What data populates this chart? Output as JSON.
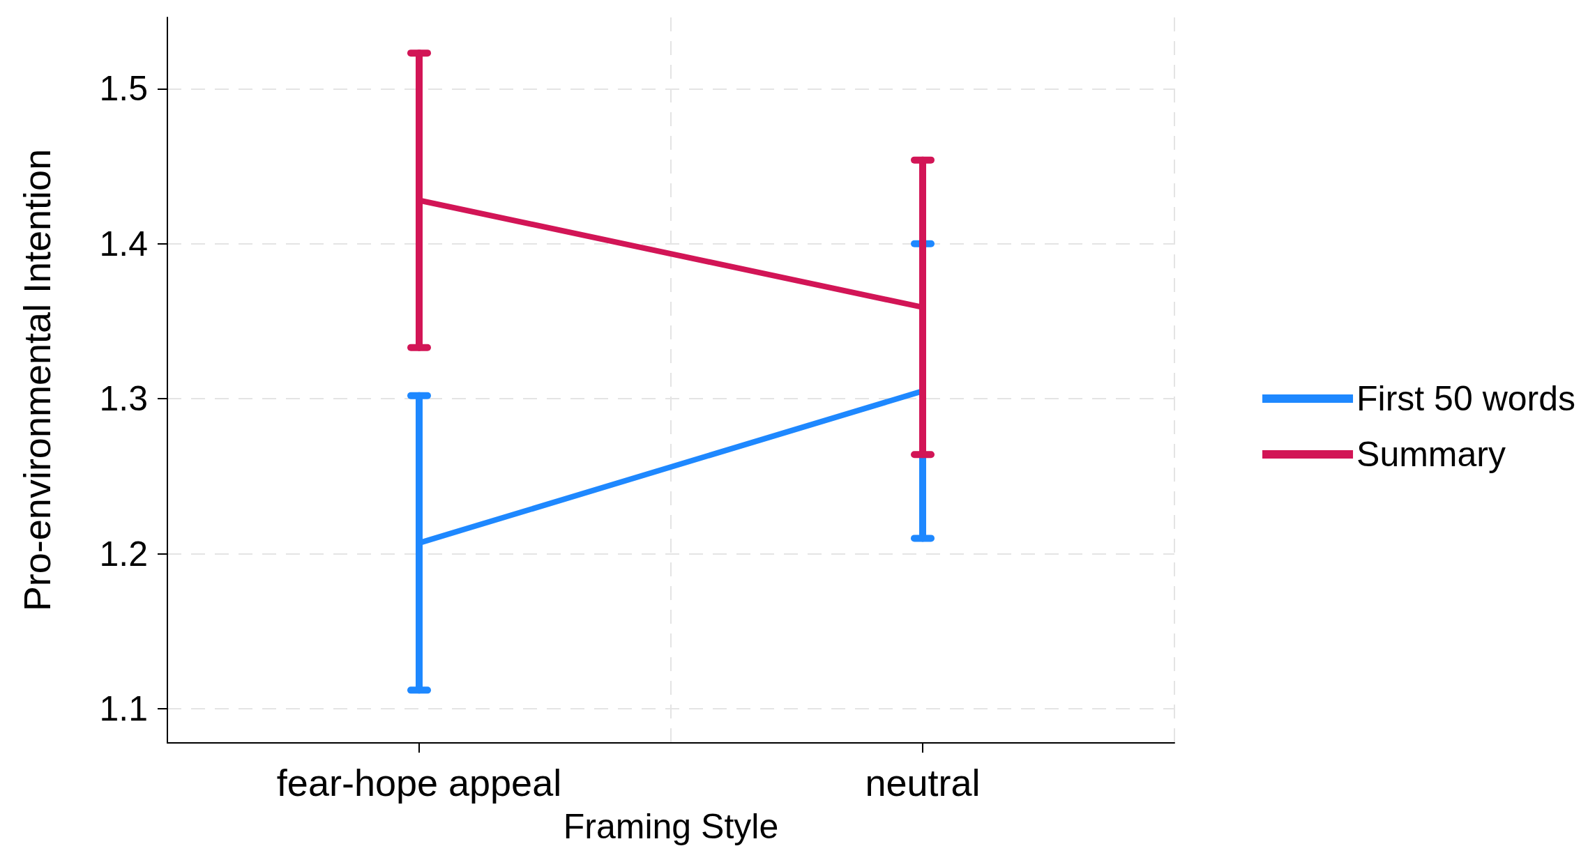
{
  "chart_data": {
    "type": "line",
    "xlabel": "Framing Style",
    "ylabel": "Pro-environmental Intention",
    "categories": [
      "fear-hope appeal",
      "neutral"
    ],
    "series": [
      {
        "name": "First 50 words",
        "color": "#1e88ff",
        "values": [
          1.207,
          1.305
        ],
        "errors": [
          0.095,
          0.095
        ]
      },
      {
        "name": "Summary",
        "color": "#d21556",
        "values": [
          1.428,
          1.359
        ],
        "errors": [
          0.095,
          0.095
        ]
      }
    ],
    "ylim": [
      1.078,
      1.546
    ],
    "yticks": [
      1.1,
      1.2,
      1.3,
      1.4,
      1.5
    ],
    "grid": true,
    "legend": "right",
    "marker": "none",
    "line_style": "solid"
  }
}
